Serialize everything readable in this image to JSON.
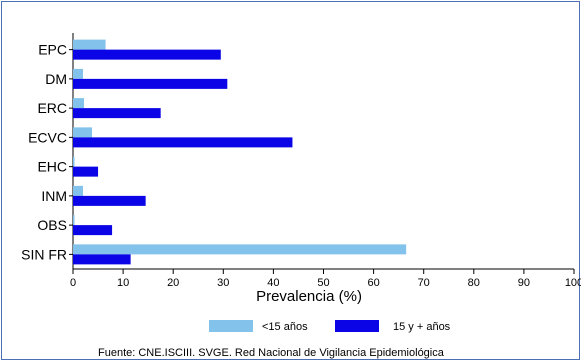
{
  "chart_data": {
    "type": "bar",
    "orientation": "horizontal",
    "categories": [
      "EPC",
      "DM",
      "ERC",
      "ECVC",
      "EHC",
      "INM",
      "OBS",
      "SIN FR"
    ],
    "series": [
      {
        "name": "<15 años",
        "color": "#83c2ea",
        "values": [
          6.5,
          2,
          2.2,
          3.8,
          0.3,
          2,
          0.3,
          66.5
        ]
      },
      {
        "name": "15 y + años",
        "color": "#0a04e6",
        "values": [
          29.5,
          30.8,
          17.5,
          43.8,
          5,
          14.5,
          7.8,
          11.5
        ]
      }
    ],
    "xlabel": "Prevalencia (%)",
    "xlim": [
      0,
      100
    ],
    "xticks": [
      0,
      10,
      20,
      30,
      40,
      50,
      60,
      70,
      80,
      90,
      100
    ],
    "legend_position": "bottom",
    "grid": false
  },
  "footer": {
    "source": "Fuente: CNE.ISCIII. SVGE. Red Nacional de Vigilancia Epidemiológica"
  }
}
